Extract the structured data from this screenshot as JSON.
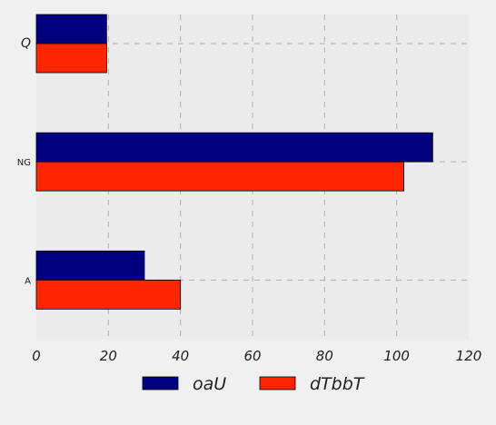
{
  "chart_data": {
    "type": "bar",
    "orientation": "horizontal",
    "categories": [
      "A",
      "NG",
      "Q"
    ],
    "category_label_styles": [
      "normal",
      "normal",
      "italic"
    ],
    "series": [
      {
        "name": "oaU",
        "color": "#00007f",
        "values": [
          30,
          110,
          19.5
        ]
      },
      {
        "name": "dTbbT",
        "color": "#ff2500",
        "values": [
          40,
          102,
          19.5
        ]
      }
    ],
    "xlim": [
      0,
      120
    ],
    "xticks": [
      0,
      20,
      40,
      60,
      80,
      100,
      120
    ],
    "grid": true,
    "legend_position": "bottom-center",
    "title": "",
    "xlabel": "",
    "ylabel": ""
  }
}
